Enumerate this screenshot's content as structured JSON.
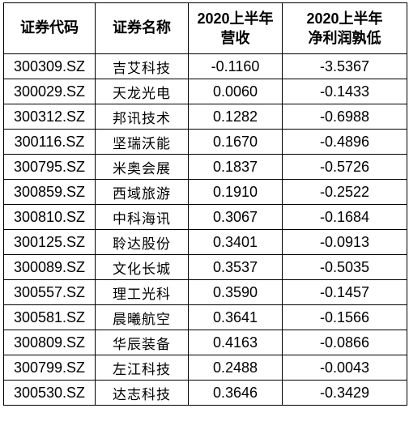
{
  "headers": {
    "code": "证券代码",
    "name": "证券名称",
    "revenue_line1": "2020上半年",
    "revenue_line2": "营收",
    "profit_line1": "2020上半年",
    "profit_line2": "净利润孰低"
  },
  "rows": [
    {
      "code": "300309.SZ",
      "name": "吉艾科技",
      "revenue": "-0.1160",
      "profit": "-3.5367"
    },
    {
      "code": "300029.SZ",
      "name": "天龙光电",
      "revenue": "0.0060",
      "profit": "-0.1433"
    },
    {
      "code": "300312.SZ",
      "name": "邦讯技术",
      "revenue": "0.1282",
      "profit": "-0.6988"
    },
    {
      "code": "300116.SZ",
      "name": "坚瑞沃能",
      "revenue": "0.1670",
      "profit": "-0.4896"
    },
    {
      "code": "300795.SZ",
      "name": "米奥会展",
      "revenue": "0.1837",
      "profit": "-0.5726"
    },
    {
      "code": "300859.SZ",
      "name": "西域旅游",
      "revenue": "0.1910",
      "profit": "-0.2522"
    },
    {
      "code": "300810.SZ",
      "name": "中科海讯",
      "revenue": "0.3067",
      "profit": "-0.1684"
    },
    {
      "code": "300125.SZ",
      "name": "聆达股份",
      "revenue": "0.3401",
      "profit": "-0.0913"
    },
    {
      "code": "300089.SZ",
      "name": "文化长城",
      "revenue": "0.3537",
      "profit": "-0.5035"
    },
    {
      "code": "300557.SZ",
      "name": "理工光科",
      "revenue": "0.3590",
      "profit": "-0.1457"
    },
    {
      "code": "300581.SZ",
      "name": "晨曦航空",
      "revenue": "0.3641",
      "profit": "-0.1566"
    },
    {
      "code": "300809.SZ",
      "name": "华辰装备",
      "revenue": "0.4163",
      "profit": "-0.0866"
    },
    {
      "code": "300799.SZ",
      "name": "左江科技",
      "revenue": "0.2488",
      "profit": "-0.0043"
    },
    {
      "code": "300530.SZ",
      "name": "达志科技",
      "revenue": "0.3646",
      "profit": "-0.3429"
    }
  ]
}
